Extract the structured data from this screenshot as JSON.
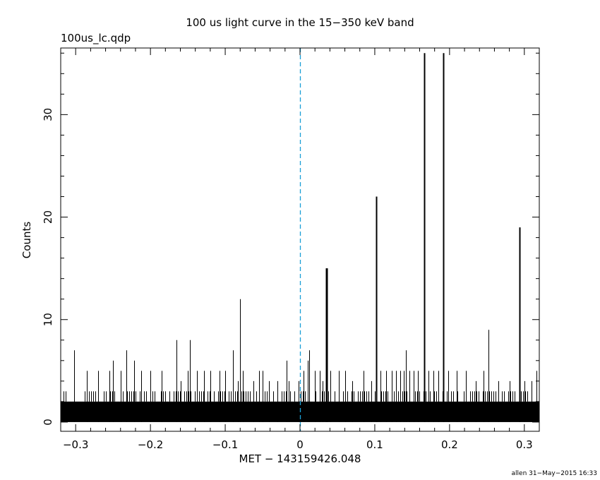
{
  "chart_data": {
    "type": "bar",
    "title": "100 us light curve in the 15−350 keV band",
    "file_label": "100us_lc.qdp",
    "xlabel": "MET − 143159426.048",
    "ylabel": "Counts",
    "footer": "allen 31−May−2015 16:33",
    "xlim": [
      -0.32,
      0.32
    ],
    "ylim": [
      -0.9,
      36.5
    ],
    "xticks": [
      -0.3,
      -0.2,
      -0.1,
      0,
      0.1,
      0.2,
      0.3
    ],
    "xtick_labels": [
      "−0.3",
      "−0.2",
      "−0.1",
      "0",
      "0.1",
      "0.2",
      "0.3"
    ],
    "yticks": [
      0,
      10,
      20,
      30
    ],
    "ytick_labels": [
      "0",
      "10",
      "20",
      "30"
    ],
    "bin_width_s": 0.0001,
    "background_level_counts": 2,
    "trigger_time": 0,
    "grid": false,
    "colors": {
      "data": "#000000",
      "trigger_line": "#1a9fd6"
    },
    "peaks": {
      "x": [
        -0.302,
        -0.285,
        -0.27,
        -0.255,
        -0.25,
        -0.24,
        -0.232,
        -0.222,
        -0.212,
        -0.2,
        -0.185,
        -0.165,
        -0.16,
        -0.15,
        -0.147,
        -0.138,
        -0.128,
        -0.12,
        -0.108,
        -0.1,
        -0.09,
        -0.083,
        -0.08,
        -0.076,
        -0.062,
        -0.055,
        -0.05,
        -0.042,
        -0.03,
        -0.018,
        -0.015,
        -0.002,
        0.005,
        0.01,
        0.012,
        0.02,
        0.026,
        0.03,
        0.035,
        0.036,
        0.041,
        0.052,
        0.06,
        0.07,
        0.085,
        0.095,
        0.102,
        0.108,
        0.115,
        0.123,
        0.128,
        0.134,
        0.139,
        0.142,
        0.146,
        0.152,
        0.158,
        0.166,
        0.172,
        0.178,
        0.185,
        0.192,
        0.198,
        0.21,
        0.222,
        0.235,
        0.245,
        0.252,
        0.265,
        0.28,
        0.294,
        0.3,
        0.31,
        0.316
      ],
      "y": [
        7,
        5,
        5,
        5,
        6,
        5,
        7,
        6,
        5,
        5,
        5,
        8,
        4,
        5,
        8,
        5,
        5,
        5,
        5,
        5,
        7,
        4,
        12,
        5,
        4,
        5,
        5,
        4,
        4,
        6,
        4,
        4,
        5,
        6,
        7,
        5,
        5,
        4,
        15,
        15,
        5,
        5,
        5,
        4,
        5,
        4,
        22,
        5,
        5,
        5,
        5,
        5,
        5,
        7,
        5,
        5,
        5,
        36,
        5,
        5,
        5,
        36,
        5,
        5,
        5,
        4,
        5,
        9,
        4,
        4,
        19,
        4,
        4,
        5
      ]
    }
  }
}
